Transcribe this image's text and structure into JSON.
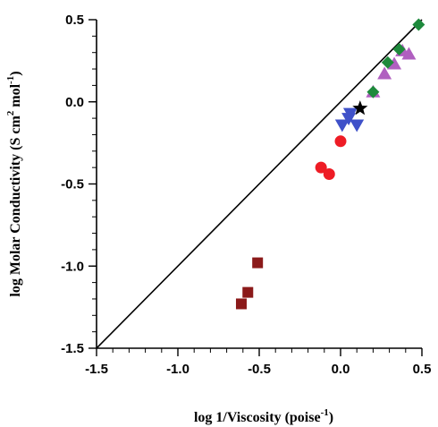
{
  "chart_data": {
    "type": "scatter",
    "xlabel": "log 1/Viscosity (poise",
    "xlabel_sup": "-1",
    "xlabel_tail": ")",
    "ylabel_parts": [
      "log Molar Conductivity (S cm",
      "2",
      " mol",
      "-1",
      ")"
    ],
    "xlim": [
      -1.5,
      0.5
    ],
    "ylim": [
      -1.5,
      0.5
    ],
    "x_ticks": [
      -1.5,
      -1.0,
      -0.5,
      0.0,
      0.5
    ],
    "x_tick_labels": [
      "-1.5",
      "-1.0",
      "-0.5",
      "0.0",
      "0.5"
    ],
    "y_ticks": [
      -1.5,
      -1.0,
      -0.5,
      0.0,
      0.5
    ],
    "y_tick_labels": [
      "-1.5",
      "-1.0",
      "-0.5",
      "0.0",
      "0.5"
    ],
    "minor_tick_step": 0.1,
    "grid": false,
    "reference_line": {
      "from": [
        -1.5,
        -1.5
      ],
      "to": [
        0.5,
        0.5
      ],
      "color": "#000000"
    },
    "series": [
      {
        "marker": "square",
        "color": "#8b1a1a",
        "points": [
          [
            -0.61,
            -1.23
          ],
          [
            -0.57,
            -1.16
          ],
          [
            -0.51,
            -0.98
          ]
        ]
      },
      {
        "marker": "circle",
        "color": "#ee1c25",
        "points": [
          [
            -0.12,
            -0.4
          ],
          [
            -0.07,
            -0.44
          ],
          [
            0.0,
            -0.24
          ]
        ]
      },
      {
        "marker": "triangle-down",
        "color": "#3f51c9",
        "points": [
          [
            0.01,
            -0.14
          ],
          [
            0.05,
            -0.1
          ],
          [
            0.06,
            -0.07
          ],
          [
            0.1,
            -0.14
          ]
        ]
      },
      {
        "marker": "star",
        "color": "#000000",
        "points": [
          [
            0.12,
            -0.04
          ]
        ]
      },
      {
        "marker": "triangle-up",
        "color": "#b05fc0",
        "points": [
          [
            0.2,
            0.06
          ],
          [
            0.27,
            0.17
          ],
          [
            0.33,
            0.23
          ],
          [
            0.38,
            0.31
          ],
          [
            0.42,
            0.29
          ]
        ]
      },
      {
        "marker": "diamond",
        "color": "#1e8a3c",
        "points": [
          [
            0.2,
            0.06
          ],
          [
            0.29,
            0.24
          ],
          [
            0.36,
            0.32
          ],
          [
            0.48,
            0.47
          ]
        ]
      }
    ]
  }
}
